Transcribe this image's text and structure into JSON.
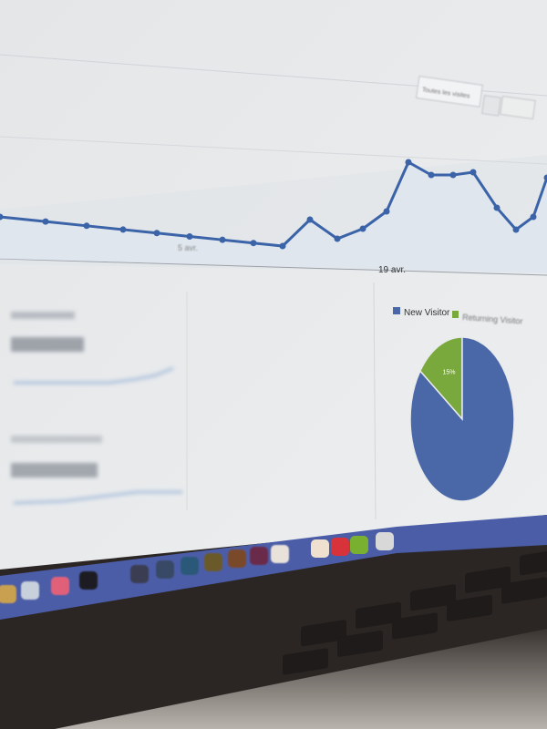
{
  "header": {
    "date_range_button": "Toutes les visites"
  },
  "chart_data": [
    {
      "type": "line",
      "x_tick_labels": [
        "5 avr.",
        "19 avr."
      ],
      "series": [
        {
          "values": [
            32,
            25,
            22,
            18,
            14,
            9,
            6,
            3,
            0,
            29,
            8,
            19,
            38,
            92,
            78,
            78,
            81,
            42,
            18,
            32,
            75
          ]
        }
      ],
      "color": "#3a63a8",
      "grid": true
    },
    {
      "type": "pie",
      "legend": [
        "New Visitor",
        "Returning Visitor"
      ],
      "legend_position": "top",
      "values": [
        85,
        15
      ],
      "labels": [
        "85%",
        "15%"
      ],
      "colors": [
        "#4a67a8",
        "#79a83c"
      ]
    }
  ],
  "dock": {
    "icons": [
      "chrome-icon",
      "finder-icon",
      "app-icon",
      "terminal-icon",
      "app-icon",
      "app-icon",
      "photoshop-icon",
      "illustrator-icon",
      "bridge-icon",
      "indesign-icon",
      "preview-icon",
      "popcorn-time-icon",
      "itunes-icon",
      "spotify-icon",
      "trash-icon"
    ],
    "color": "#4c5da8"
  }
}
